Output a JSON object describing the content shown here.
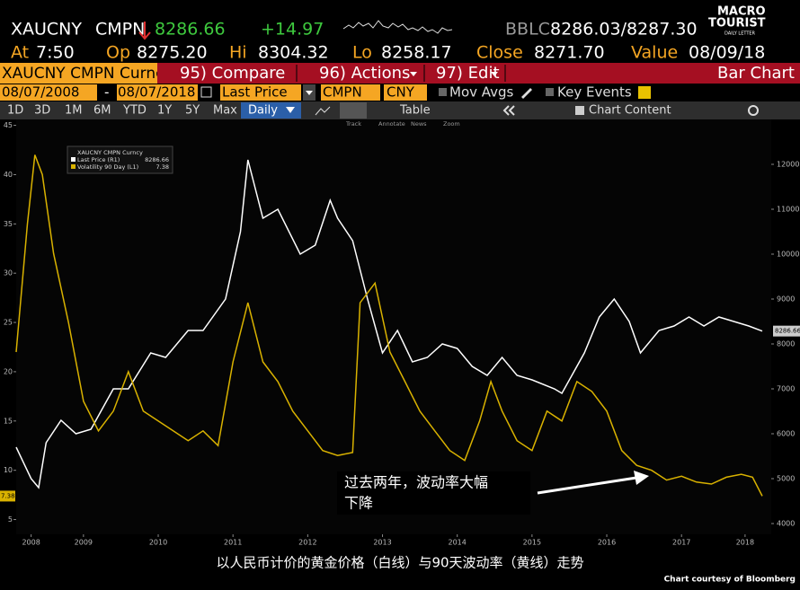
{
  "header": {
    "ticker": "XAUCNY",
    "source": "CMPN",
    "last": "8286.66",
    "change": "+14.97",
    "bblc_label": "BBLC",
    "bid_ask": "8286.03/8287.30",
    "logo_top": "MACRO",
    "logo_mid": "TOURIST",
    "logo_sub": "DAILY LETTER",
    "quote": [
      {
        "label": "At",
        "value": "7:50"
      },
      {
        "label": "Op",
        "value": "8275.20"
      },
      {
        "label": "Hi",
        "value": "8304.32"
      },
      {
        "label": "Lo",
        "value": "8258.17"
      },
      {
        "label": "Close",
        "value": "8271.70"
      },
      {
        "label": "Value",
        "value": "08/09/18"
      }
    ]
  },
  "toolbar": {
    "security": "XAUCNY CMPN Curnc",
    "compare": "95) Compare",
    "actions": "96) Actions",
    "edit": "97) Edit",
    "chart_type": "Bar Chart"
  },
  "controls": {
    "start": "08/07/2008",
    "dash": "-",
    "end": "08/07/2018",
    "field": "Last Price",
    "source": "CMPN",
    "currency": "CNY",
    "mov_avgs": "Mov Avgs",
    "key_events": "Key Events"
  },
  "periods": [
    "1D",
    "3D",
    "1M",
    "6M",
    "YTD",
    "1Y",
    "5Y",
    "Max"
  ],
  "frequency": "Daily",
  "table": "Table",
  "chart_content": "Chart Content",
  "tools": [
    "Track",
    "Annotate",
    "News",
    "Zoom"
  ],
  "chart_data": {
    "type": "line",
    "legend_title": "XAUCNY CMPN Curncy",
    "caption": "以人民币计价的黄金价格（白线）与90天波动率（黄线）走势",
    "credit": "Chart courtesy of Bloomberg",
    "annotation": [
      "过去两年，波动率大幅",
      "下降"
    ],
    "xlim": [
      2008.6,
      2018.7
    ],
    "xticks": [
      {
        "value": 2008.8,
        "label": "2008"
      },
      {
        "value": 2009.5,
        "label": "2009"
      },
      {
        "value": 2010.5,
        "label": "2010"
      },
      {
        "value": 2011.5,
        "label": "2011"
      },
      {
        "value": 2012.5,
        "label": "2012"
      },
      {
        "value": 2013.5,
        "label": "2013"
      },
      {
        "value": 2014.5,
        "label": "2014"
      },
      {
        "value": 2015.5,
        "label": "2015"
      },
      {
        "value": 2016.5,
        "label": "2016"
      },
      {
        "value": 2017.5,
        "label": "2017"
      },
      {
        "value": 2018.35,
        "label": "2018"
      }
    ],
    "ylim": [
      3.5,
      45.6
    ],
    "yticks": [
      5,
      10,
      15,
      20,
      25,
      30,
      35,
      40,
      45
    ],
    "y2lim": [
      3760,
      13000
    ],
    "y2ticks": [
      4000,
      5000,
      6000,
      7000,
      8000,
      9000,
      10000,
      11000,
      12000
    ],
    "series": [
      {
        "name": "Last Price (R1)",
        "color": "#ffffff",
        "axis": "y2",
        "x": [
          2008.6,
          2008.8,
          2008.9,
          2009.0,
          2009.2,
          2009.4,
          2009.6,
          2009.9,
          2010.1,
          2010.4,
          2010.6,
          2010.9,
          2011.1,
          2011.4,
          2011.6,
          2011.7,
          2011.9,
          2012.1,
          2012.4,
          2012.6,
          2012.8,
          2012.9,
          2013.1,
          2013.3,
          2013.5,
          2013.7,
          2013.9,
          2014.1,
          2014.3,
          2014.5,
          2014.7,
          2014.9,
          2015.1,
          2015.3,
          2015.5,
          2015.8,
          2015.9,
          2016.2,
          2016.4,
          2016.6,
          2016.8,
          2016.95,
          2017.2,
          2017.4,
          2017.6,
          2017.8,
          2018.0,
          2018.2,
          2018.4,
          2018.58
        ],
        "values": [
          5700,
          5000,
          4800,
          5800,
          6300,
          6000,
          6100,
          7000,
          7000,
          7800,
          7700,
          8300,
          8300,
          9000,
          10500,
          12100,
          10800,
          11000,
          10000,
          10200,
          11200,
          10800,
          10300,
          9000,
          7800,
          8300,
          7600,
          7700,
          8000,
          7900,
          7500,
          7300,
          7700,
          7300,
          7200,
          7000,
          6900,
          7800,
          8600,
          9000,
          8500,
          7800,
          8300,
          8400,
          8600,
          8400,
          8600,
          8500,
          8400,
          8286.66
        ]
      },
      {
        "name": "Volatility 90 Day (L1)",
        "color": "#d9b200",
        "axis": "y",
        "x": [
          2008.6,
          2008.75,
          2008.85,
          2008.95,
          2009.1,
          2009.3,
          2009.5,
          2009.7,
          2009.9,
          2010.1,
          2010.3,
          2010.5,
          2010.7,
          2010.9,
          2011.1,
          2011.3,
          2011.5,
          2011.7,
          2011.9,
          2012.1,
          2012.3,
          2012.5,
          2012.7,
          2012.9,
          2013.1,
          2013.2,
          2013.4,
          2013.6,
          2013.8,
          2014.0,
          2014.2,
          2014.4,
          2014.6,
          2014.8,
          2014.95,
          2015.1,
          2015.3,
          2015.5,
          2015.7,
          2015.9,
          2016.1,
          2016.3,
          2016.5,
          2016.7,
          2016.9,
          2017.1,
          2017.3,
          2017.5,
          2017.7,
          2017.9,
          2018.1,
          2018.3,
          2018.45,
          2018.58
        ],
        "values": [
          22,
          35,
          42,
          40,
          32,
          25,
          17,
          14,
          16,
          20,
          16,
          15,
          14,
          13,
          14,
          12.5,
          21,
          27,
          21,
          19,
          16,
          14,
          12,
          11.5,
          11.8,
          27,
          29,
          22,
          19,
          16,
          14,
          12,
          11,
          15,
          19,
          16,
          13,
          12,
          16,
          15,
          19,
          18,
          16,
          12,
          10.5,
          10,
          9,
          9.4,
          8.8,
          8.6,
          9.3,
          9.6,
          9.3,
          7.38
        ]
      }
    ]
  }
}
